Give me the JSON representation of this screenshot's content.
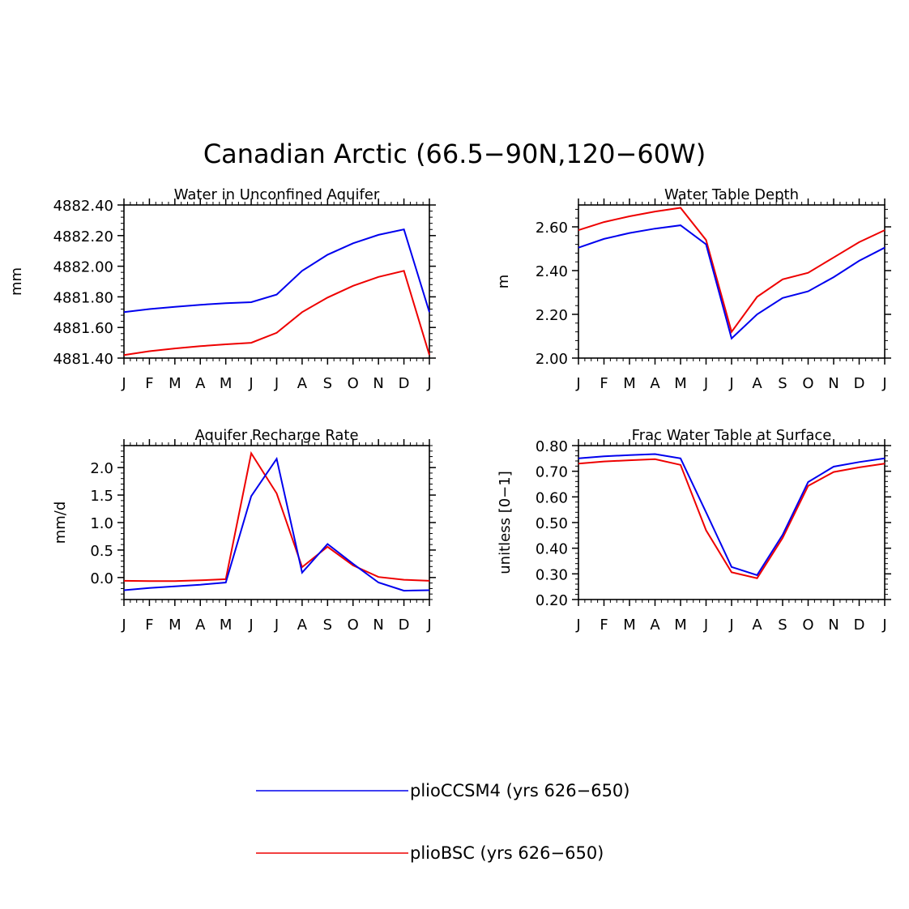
{
  "figure": {
    "title": "Canadian Arctic (66.5−90N,120−60W)"
  },
  "colors": {
    "pliocCSM4": "#0000ee",
    "plioBSC": "#ee0000",
    "axis": "#000000"
  },
  "legend": {
    "entries": [
      {
        "label": "plioCCSM4 (yrs 626−650)",
        "color": "#0000ee"
      },
      {
        "label": "plioBSC (yrs 626−650)",
        "color": "#ee0000"
      }
    ]
  },
  "chart_data": [
    {
      "type": "line",
      "title": "Water in Unconfined Aquifer",
      "xlabel": "",
      "ylabel": "mm",
      "categories": [
        "J",
        "F",
        "M",
        "A",
        "M",
        "J",
        "J",
        "A",
        "S",
        "O",
        "N",
        "D",
        "J"
      ],
      "ylim": [
        4881.4,
        4882.4
      ],
      "yticks": [
        4881.4,
        4881.6,
        4881.8,
        4882.0,
        4882.2,
        4882.4
      ],
      "ytick_labels": [
        "4881.40",
        "4881.60",
        "4881.80",
        "4882.00",
        "4882.20",
        "4882.40"
      ],
      "series": [
        {
          "name": "plioCCSM4 (yrs 626−650)",
          "color": "#0000ee",
          "values": [
            4881.7,
            4881.72,
            4881.735,
            4881.748,
            4881.758,
            4881.765,
            4881.815,
            4881.97,
            4882.075,
            4882.15,
            4882.205,
            4882.24,
            4881.7
          ]
        },
        {
          "name": "plioBSC (yrs 626−650)",
          "color": "#ee0000",
          "values": [
            4881.42,
            4881.445,
            4881.463,
            4881.478,
            4881.49,
            4881.5,
            4881.565,
            4881.7,
            4881.795,
            4881.872,
            4881.93,
            4881.97,
            4881.42
          ]
        }
      ]
    },
    {
      "type": "line",
      "title": "Water Table Depth",
      "xlabel": "",
      "ylabel": "m",
      "categories": [
        "J",
        "F",
        "M",
        "A",
        "M",
        "J",
        "J",
        "A",
        "S",
        "O",
        "N",
        "D",
        "J"
      ],
      "ylim": [
        2.0,
        2.7
      ],
      "yticks": [
        2.0,
        2.2,
        2.4,
        2.6
      ],
      "ytick_labels": [
        "2.00",
        "2.20",
        "2.40",
        "2.60"
      ],
      "series": [
        {
          "name": "plioCCSM4 (yrs 626−650)",
          "color": "#0000ee",
          "values": [
            2.505,
            2.545,
            2.572,
            2.592,
            2.607,
            2.52,
            2.09,
            2.2,
            2.275,
            2.305,
            2.37,
            2.445,
            2.505
          ]
        },
        {
          "name": "plioBSC (yrs 626−650)",
          "color": "#ee0000",
          "values": [
            2.585,
            2.622,
            2.648,
            2.67,
            2.687,
            2.54,
            2.12,
            2.28,
            2.36,
            2.39,
            2.46,
            2.53,
            2.585
          ]
        }
      ]
    },
    {
      "type": "line",
      "title": "Aquifer Recharge Rate",
      "xlabel": "",
      "ylabel": "mm/d",
      "categories": [
        "J",
        "F",
        "M",
        "A",
        "M",
        "J",
        "J",
        "A",
        "S",
        "O",
        "N",
        "D",
        "J"
      ],
      "ylim": [
        -0.4,
        2.4
      ],
      "yticks": [
        0.0,
        0.5,
        1.0,
        1.5,
        2.0
      ],
      "ytick_labels": [
        "0.0",
        "0.5",
        "1.0",
        "1.5",
        "2.0"
      ],
      "series": [
        {
          "name": "plioCCSM4 (yrs 626−650)",
          "color": "#0000ee",
          "values": [
            -0.23,
            -0.19,
            -0.16,
            -0.13,
            -0.09,
            1.48,
            2.16,
            0.09,
            0.61,
            0.25,
            -0.09,
            -0.24,
            -0.23
          ]
        },
        {
          "name": "plioBSC (yrs 626−650)",
          "color": "#ee0000",
          "values": [
            -0.06,
            -0.065,
            -0.065,
            -0.05,
            -0.03,
            2.26,
            1.53,
            0.19,
            0.56,
            0.22,
            0.01,
            -0.04,
            -0.06
          ]
        }
      ]
    },
    {
      "type": "line",
      "title": "Frac Water Table at Surface",
      "xlabel": "",
      "ylabel": "unitless [0−1]",
      "categories": [
        "J",
        "F",
        "M",
        "A",
        "M",
        "J",
        "J",
        "A",
        "S",
        "O",
        "N",
        "D",
        "J"
      ],
      "ylim": [
        0.2,
        0.8
      ],
      "yticks": [
        0.2,
        0.3,
        0.4,
        0.5,
        0.6,
        0.7,
        0.8
      ],
      "ytick_labels": [
        "0.20",
        "0.30",
        "0.40",
        "0.50",
        "0.60",
        "0.70",
        "0.80"
      ],
      "series": [
        {
          "name": "plioCCSM4 (yrs 626−650)",
          "color": "#0000ee",
          "values": [
            0.75,
            0.758,
            0.763,
            0.767,
            0.75,
            0.54,
            0.327,
            0.295,
            0.452,
            0.658,
            0.718,
            0.736,
            0.75
          ]
        },
        {
          "name": "plioBSC (yrs 626−650)",
          "color": "#ee0000",
          "values": [
            0.73,
            0.738,
            0.743,
            0.747,
            0.725,
            0.47,
            0.306,
            0.283,
            0.44,
            0.643,
            0.697,
            0.715,
            0.73
          ]
        }
      ]
    }
  ]
}
